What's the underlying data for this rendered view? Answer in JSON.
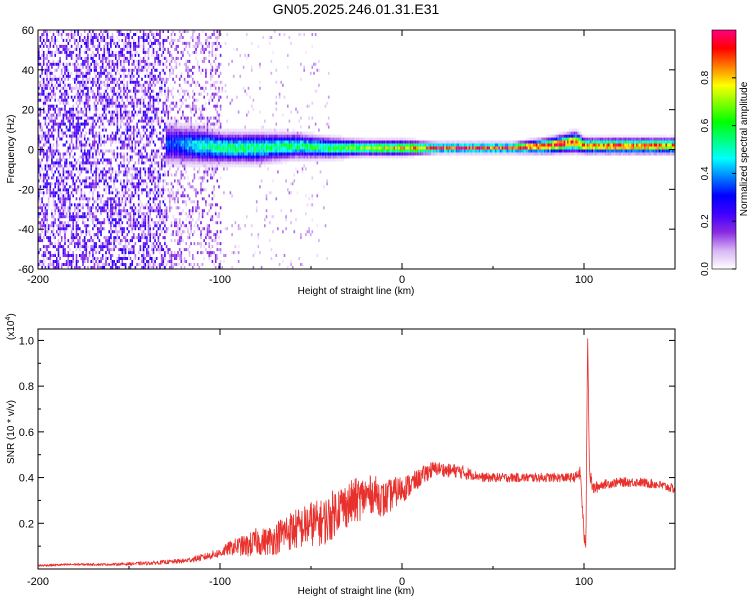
{
  "title": "GN05.2025.246.01.31.E31",
  "colors": {
    "signal_line": "#e8302c",
    "axis": "#000000"
  },
  "chart_data": [
    {
      "type": "heatmap",
      "name": "spectrogram",
      "xlabel": "Height of straight line (km)",
      "ylabel": "Frequency (Hz)",
      "xlim": [
        -200,
        150
      ],
      "ylim": [
        -60,
        60
      ],
      "x_ticks": [
        "-200",
        "-100",
        "0",
        "100"
      ],
      "y_ticks": [
        "60",
        "40",
        "20",
        "0",
        "-20",
        "-40",
        "-60"
      ],
      "colorbar": {
        "label": "Normalized spectral amplitude",
        "range": [
          0,
          1
        ],
        "ticks": [
          "0.0",
          "0.2",
          "0.4",
          "0.6",
          "0.8"
        ],
        "stops": [
          "#ffffff",
          "#d8b6f5",
          "#8a2be2",
          "#3f00ff",
          "#0000ff",
          "#0080ff",
          "#00ffff",
          "#00ff80",
          "#00ff00",
          "#80ff00",
          "#ffff00",
          "#ff8000",
          "#ff0000",
          "#ff0080"
        ]
      },
      "signal_band": {
        "x": [
          -125,
          -110,
          -100,
          -80,
          -60,
          -40,
          -20,
          0,
          20,
          40,
          60,
          80,
          95,
          100,
          120,
          150
        ],
        "center_hz": [
          2,
          1,
          0,
          0,
          1,
          0,
          0,
          0,
          0,
          0,
          0,
          1,
          3,
          1,
          1,
          1
        ],
        "halfwidth_hz": [
          8,
          7,
          6,
          6,
          5,
          4,
          3,
          3,
          2,
          2,
          2,
          3,
          4,
          3,
          3,
          3
        ],
        "peak_amplitude": [
          0.35,
          0.5,
          0.55,
          0.55,
          0.55,
          0.6,
          0.7,
          0.8,
          0.9,
          0.92,
          0.9,
          0.95,
          0.9,
          0.85,
          0.9,
          0.85
        ]
      },
      "noise_region": {
        "x_range": [
          -200,
          -100
        ],
        "amplitude": 0.15
      }
    },
    {
      "type": "line",
      "name": "snr",
      "xlabel": "Height of straight line (km)",
      "ylabel": "SNR (10 * v/v)",
      "y_scale_label": "(x10",
      "y_scale_exp": "4",
      "y_scale_close": ")",
      "xlim": [
        -200,
        150
      ],
      "ylim": [
        0,
        1.05
      ],
      "x_ticks": [
        "-200",
        "-100",
        "0",
        "100"
      ],
      "y_ticks": [
        "1.0",
        "0.8",
        "0.6",
        "0.4",
        "0.2"
      ],
      "series": [
        {
          "name": "SNR",
          "x": [
            -200,
            -180,
            -160,
            -140,
            -120,
            -110,
            -100,
            -95,
            -90,
            -85,
            -80,
            -75,
            -70,
            -65,
            -60,
            -55,
            -50,
            -45,
            -40,
            -35,
            -30,
            -25,
            -20,
            -15,
            -10,
            -5,
            0,
            5,
            10,
            15,
            20,
            25,
            30,
            35,
            40,
            45,
            50,
            55,
            60,
            65,
            70,
            75,
            80,
            85,
            90,
            95,
            98,
            100,
            101,
            102,
            103,
            105,
            110,
            120,
            130,
            140,
            150
          ],
          "values": [
            0.015,
            0.02,
            0.02,
            0.025,
            0.035,
            0.05,
            0.07,
            0.09,
            0.1,
            0.1,
            0.12,
            0.12,
            0.13,
            0.16,
            0.17,
            0.18,
            0.2,
            0.2,
            0.22,
            0.27,
            0.28,
            0.3,
            0.32,
            0.33,
            0.3,
            0.33,
            0.35,
            0.37,
            0.4,
            0.43,
            0.44,
            0.43,
            0.43,
            0.42,
            0.41,
            0.4,
            0.4,
            0.4,
            0.4,
            0.4,
            0.4,
            0.4,
            0.4,
            0.4,
            0.4,
            0.4,
            0.42,
            0.15,
            0.08,
            1.05,
            0.42,
            0.35,
            0.37,
            0.38,
            0.38,
            0.37,
            0.35
          ],
          "noise": [
            0.005,
            0.005,
            0.005,
            0.008,
            0.01,
            0.015,
            0.02,
            0.03,
            0.04,
            0.05,
            0.06,
            0.06,
            0.07,
            0.08,
            0.09,
            0.09,
            0.1,
            0.1,
            0.11,
            0.1,
            0.1,
            0.1,
            0.09,
            0.08,
            0.08,
            0.07,
            0.06,
            0.05,
            0.04,
            0.04,
            0.03,
            0.03,
            0.03,
            0.03,
            0.02,
            0.02,
            0.02,
            0.02,
            0.02,
            0.02,
            0.02,
            0.02,
            0.02,
            0.02,
            0.02,
            0.02,
            0.03,
            0.03,
            0.03,
            0.02,
            0.03,
            0.03,
            0.02,
            0.02,
            0.02,
            0.02,
            0.02
          ]
        }
      ]
    }
  ]
}
